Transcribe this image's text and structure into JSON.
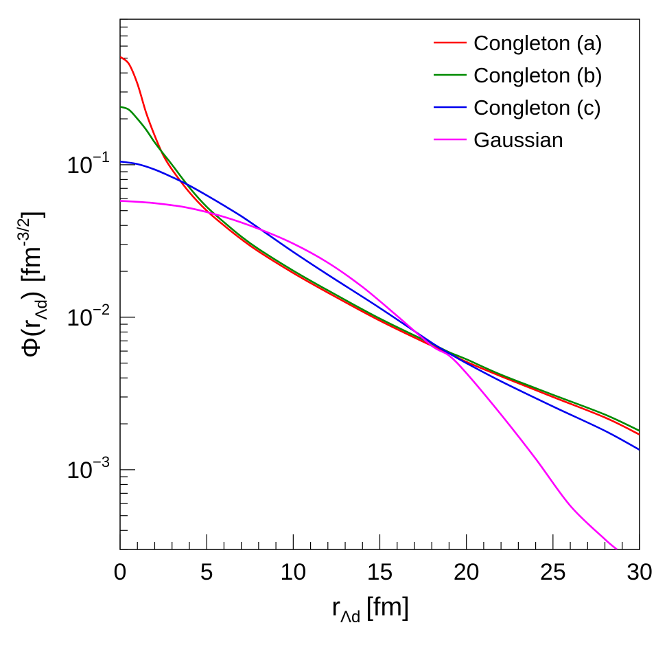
{
  "chart_data": {
    "type": "line",
    "title": "",
    "xlabel": {
      "main": "r",
      "sub": "Λd",
      "unit": "[fm]"
    },
    "ylabel": {
      "prefix": "Φ(r",
      "sub": "Λd",
      "paren": ")",
      "unit_open": "[fm",
      "unit_exp": "-3/2",
      "unit_close": "]"
    },
    "xlim": [
      0,
      30
    ],
    "ylim": [
      0.0003,
      0.9
    ],
    "yscale": "log",
    "x_ticks": [
      {
        "value": 0,
        "label": "0"
      },
      {
        "value": 5,
        "label": "5"
      },
      {
        "value": 10,
        "label": "10"
      },
      {
        "value": 15,
        "label": "15"
      },
      {
        "value": 20,
        "label": "20"
      },
      {
        "value": 25,
        "label": "25"
      },
      {
        "value": 30,
        "label": "30"
      }
    ],
    "y_ticks": [
      {
        "value": 0.1,
        "base": "10",
        "exp": "−1"
      },
      {
        "value": 0.01,
        "base": "10",
        "exp": "−2"
      },
      {
        "value": 0.001,
        "base": "10",
        "exp": "−3"
      }
    ],
    "legend_position": "top-right",
    "series": [
      {
        "name": "Congleton (a)",
        "color": "#ff0000",
        "x": [
          0,
          0.5,
          1,
          1.5,
          2,
          2.5,
          3,
          4,
          5,
          6,
          7,
          8,
          10,
          12,
          15,
          18,
          19,
          20,
          22,
          25,
          28,
          30
        ],
        "y": [
          0.51,
          0.46,
          0.34,
          0.22,
          0.155,
          0.115,
          0.093,
          0.066,
          0.05,
          0.04,
          0.0325,
          0.027,
          0.0195,
          0.0145,
          0.0095,
          0.0065,
          0.0058,
          0.0051,
          0.0041,
          0.003,
          0.0022,
          0.0017
        ]
      },
      {
        "name": "Congleton (b)",
        "color": "#008a00",
        "x": [
          0,
          0.5,
          1,
          1.5,
          2,
          2.5,
          3,
          4,
          5,
          6,
          7,
          8,
          10,
          12,
          15,
          18,
          19,
          20,
          22,
          25,
          28,
          30
        ],
        "y": [
          0.24,
          0.23,
          0.2,
          0.17,
          0.14,
          0.118,
          0.1,
          0.071,
          0.053,
          0.042,
          0.0338,
          0.028,
          0.0202,
          0.015,
          0.0098,
          0.0067,
          0.0059,
          0.0053,
          0.0042,
          0.0031,
          0.0023,
          0.0018
        ]
      },
      {
        "name": "Congleton (c)",
        "color": "#0000ee",
        "x": [
          0,
          1,
          2,
          3,
          4,
          5,
          6,
          7,
          8,
          10,
          12,
          15,
          18,
          19,
          20,
          22,
          25,
          28,
          30
        ],
        "y": [
          0.105,
          0.101,
          0.093,
          0.083,
          0.073,
          0.063,
          0.054,
          0.046,
          0.0385,
          0.0268,
          0.019,
          0.0115,
          0.0068,
          0.0058,
          0.005,
          0.0038,
          0.0026,
          0.0018,
          0.00135
        ]
      },
      {
        "name": "Gaussian",
        "color": "#ff00ff",
        "x": [
          0,
          2,
          4,
          6,
          8,
          10,
          12,
          14,
          16,
          18,
          19,
          20,
          22,
          24,
          26,
          28,
          28.7
        ],
        "y": [
          0.058,
          0.056,
          0.052,
          0.0455,
          0.038,
          0.0304,
          0.0228,
          0.0158,
          0.0102,
          0.0065,
          0.0056,
          0.0043,
          0.0023,
          0.00118,
          0.00058,
          0.00035,
          0.0003
        ]
      }
    ]
  }
}
